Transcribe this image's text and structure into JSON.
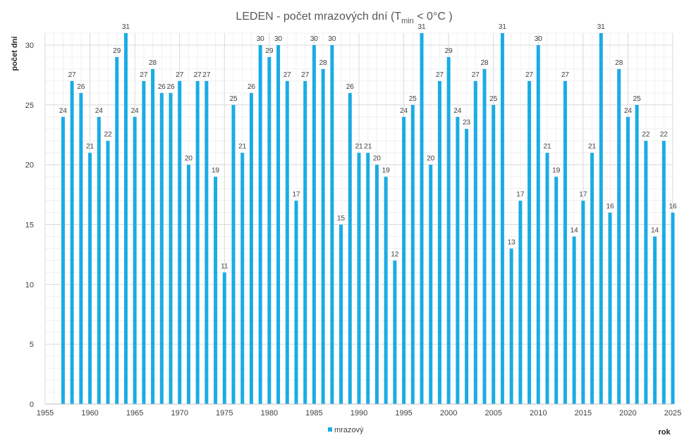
{
  "chart_data": {
    "type": "bar",
    "title": {
      "main": "LEDEN - počet mrazových dní (T",
      "sub": "min",
      "rest": " < 0°C )"
    },
    "ylabel": "počet dní",
    "xlabel": "rok",
    "xlim": [
      1955,
      2025
    ],
    "ylim": [
      0,
      31
    ],
    "x_ticks": [
      1955,
      1960,
      1965,
      1970,
      1975,
      1980,
      1985,
      1990,
      1995,
      2000,
      2005,
      2010,
      2015,
      2020,
      2025
    ],
    "y_ticks": [
      0,
      5,
      10,
      15,
      20,
      25,
      30
    ],
    "grid": true,
    "legend_position": "bottom",
    "bar_color": "#1aace4",
    "series": [
      {
        "name": "mrazový",
        "x": [
          1957,
          1958,
          1959,
          1960,
          1961,
          1962,
          1963,
          1964,
          1965,
          1966,
          1967,
          1968,
          1969,
          1970,
          1971,
          1972,
          1973,
          1974,
          1975,
          1976,
          1977,
          1978,
          1979,
          1980,
          1981,
          1982,
          1983,
          1984,
          1985,
          1986,
          1987,
          1988,
          1989,
          1990,
          1991,
          1992,
          1993,
          1994,
          1995,
          1996,
          1997,
          1998,
          1999,
          2000,
          2001,
          2002,
          2003,
          2004,
          2005,
          2006,
          2007,
          2008,
          2009,
          2010,
          2011,
          2012,
          2013,
          2014,
          2015,
          2016,
          2017,
          2018,
          2019,
          2020,
          2021,
          2022,
          2023,
          2024,
          2025
        ],
        "values": [
          24,
          27,
          26,
          21,
          24,
          22,
          29,
          31,
          24,
          27,
          28,
          26,
          26,
          27,
          20,
          27,
          27,
          19,
          11,
          25,
          21,
          26,
          30,
          29,
          30,
          27,
          17,
          27,
          30,
          28,
          30,
          15,
          26,
          21,
          21,
          20,
          19,
          12,
          24,
          25,
          31,
          20,
          27,
          29,
          24,
          23,
          27,
          28,
          25,
          31,
          13,
          17,
          27,
          30,
          21,
          19,
          27,
          14,
          17,
          21,
          31,
          16,
          28,
          24,
          25,
          22,
          14,
          22,
          16
        ]
      }
    ]
  }
}
